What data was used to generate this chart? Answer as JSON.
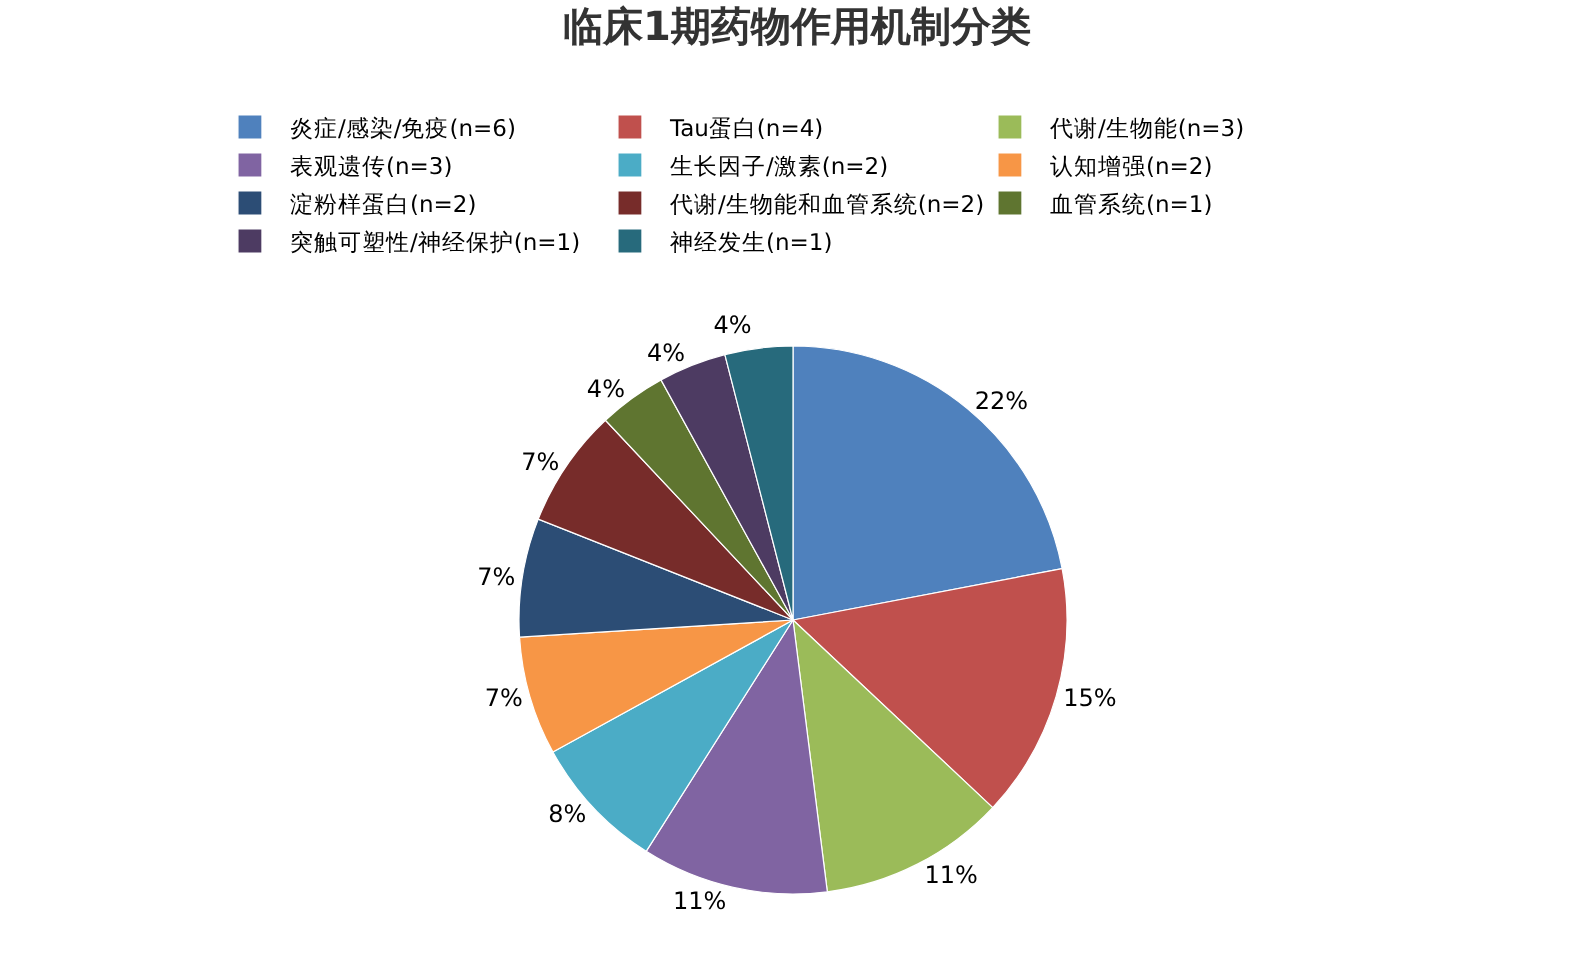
{
  "chart_data": {
    "type": "pie",
    "title": "临床1期药物作用机制分类",
    "categories": [
      "炎症/感染/免疫(n=6)",
      "Tau蛋白(n=4)",
      "代谢/生物能(n=3)",
      "表观遗传(n=3)",
      "生长因子/激素(n=2)",
      "认知增强(n=2)",
      "淀粉样蛋白(n=2)",
      "代谢/生物能和血管系统(n=2)",
      "血管系统(n=1)",
      "突触可塑性/神经保护(n=1)",
      "神经发生(n=1)"
    ],
    "values": [
      22,
      15,
      11,
      11,
      8,
      7,
      7,
      7,
      4,
      4,
      4
    ],
    "value_labels": [
      "22%",
      "15%",
      "11%",
      "11%",
      "8%",
      "7%",
      "7%",
      "7%",
      "4%",
      "4%",
      "4%"
    ],
    "colors": [
      "#4f81bd",
      "#c0504d",
      "#9bbb59",
      "#8064a2",
      "#4bacc6",
      "#f79646",
      "#2c4d75",
      "#772c2a",
      "#5f7530",
      "#4d3b62",
      "#276a7c"
    ],
    "legend": "top"
  }
}
